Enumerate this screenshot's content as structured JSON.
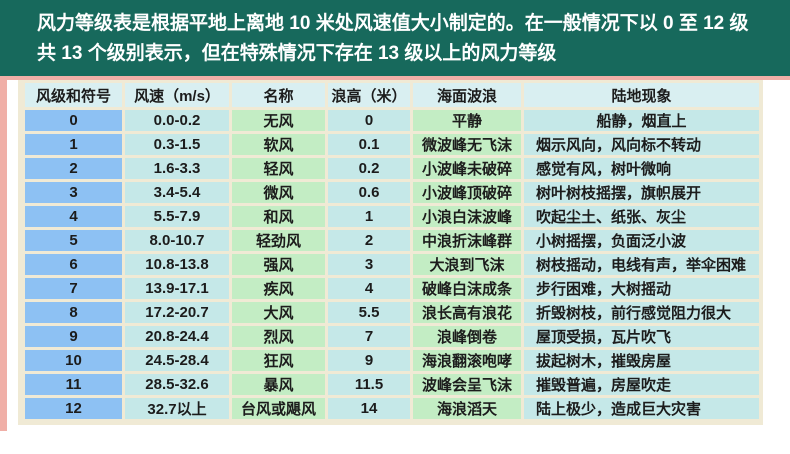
{
  "banner": {
    "line1": "风力等级表是根据平地上离地 10 米处风速值大小制定的。在一般情况下以 0 至 12 级",
    "line2": "共 13 个级别表示，但在特殊情况下存在 13 级以上的风力等级"
  },
  "colors": {
    "banner_bg": "#17695C",
    "banner_text": "#FFFFFF",
    "accent_pink": "#F0AFA7",
    "grid_beige": "#F0EAD5",
    "header_cell": "#D9EFF1",
    "level_cell": "#8DC1F3",
    "cyan_cell": "#C5E8E8",
    "green_cell": "#C3EDC4",
    "text": "#1C1C1C"
  },
  "chart_data": {
    "type": "table",
    "title": "风力等级表",
    "headers": [
      "风级和符号",
      "风速（m/s）",
      "名称",
      "浪高（米）",
      "海面波浪",
      "陆地现象"
    ],
    "rows": [
      [
        "0",
        "0.0-0.2",
        "无风",
        "0",
        "平静",
        "船静，烟直上"
      ],
      [
        "1",
        "0.3-1.5",
        "软风",
        "0.1",
        "微波峰无飞沫",
        "烟示风向，风向标不转动"
      ],
      [
        "2",
        "1.6-3.3",
        "轻风",
        "0.2",
        "小波峰未破碎",
        "感觉有风，树叶微响"
      ],
      [
        "3",
        "3.4-5.4",
        "微风",
        "0.6",
        "小波峰顶破碎",
        "树叶树枝摇摆，旗帜展开"
      ],
      [
        "4",
        "5.5-7.9",
        "和风",
        "1",
        "小浪白沫波峰",
        "吹起尘土、纸张、灰尘"
      ],
      [
        "5",
        "8.0-10.7",
        "轻劲风",
        "2",
        "中浪折沫峰群",
        "小树摇摆，负面泛小波"
      ],
      [
        "6",
        "10.8-13.8",
        "强风",
        "3",
        "大浪到飞沫",
        "树枝摇动，电线有声，举伞困难"
      ],
      [
        "7",
        "13.9-17.1",
        "疾风",
        "4",
        "破峰白沫成条",
        "步行困难，大树摇动"
      ],
      [
        "8",
        "17.2-20.7",
        "大风",
        "5.5",
        "浪长高有浪花",
        "折毁树枝，前行感觉阻力很大"
      ],
      [
        "9",
        "20.8-24.4",
        "烈风",
        "7",
        "浪峰倒卷",
        "屋顶受损，瓦片吹飞"
      ],
      [
        "10",
        "24.5-28.4",
        "狂风",
        "9",
        "海浪翻滚咆哮",
        "拔起树木，摧毁房屋"
      ],
      [
        "11",
        "28.5-32.6",
        "暴风",
        "11.5",
        "波峰会呈飞沫",
        "摧毁普遍，房屋吹走"
      ],
      [
        "12",
        "32.7以上",
        "台风或飓风",
        "14",
        "海浪滔天",
        "陆上极少，造成巨大灾害"
      ]
    ]
  }
}
